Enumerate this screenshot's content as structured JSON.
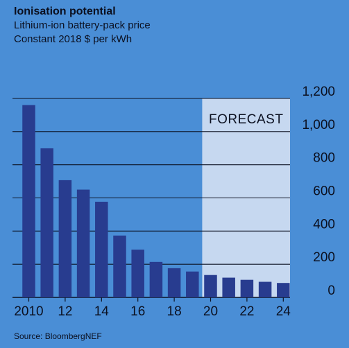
{
  "header": {
    "title": "Ionisation potential",
    "subtitle": "Lithium-ion battery-pack price",
    "unit": "Constant 2018 $ per kWh"
  },
  "source": "Source: BloombergNEF",
  "colors": {
    "background": "#4a8ed6",
    "bar": "#283c8f",
    "forecast_band": "#c6d8f0",
    "gridline": "#0b1020"
  },
  "chart_data": {
    "type": "bar",
    "title": "Ionisation potential",
    "subtitle": "Lithium-ion battery-pack price",
    "ylabel": "Constant 2018 $ per kWh",
    "categories": [
      "2010",
      "2011",
      "2012",
      "2013",
      "2014",
      "2015",
      "2016",
      "2017",
      "2018",
      "2019",
      "2020",
      "2021",
      "2022",
      "2023",
      "2024"
    ],
    "values": [
      1160,
      899,
      707,
      650,
      577,
      373,
      288,
      214,
      176,
      156,
      135,
      119,
      106,
      94,
      87
    ],
    "x_tick_labels": [
      "2010",
      "12",
      "14",
      "16",
      "18",
      "20",
      "22",
      "24"
    ],
    "y_ticks": [
      0,
      200,
      400,
      600,
      800,
      1000,
      1200
    ],
    "y_tick_labels": [
      "0",
      "200",
      "400",
      "600",
      "800",
      "1,000",
      "1,200"
    ],
    "ylim": [
      0,
      1200
    ],
    "grid": true,
    "y_axis_position": "right",
    "forecast": {
      "start_category": "2020",
      "end_category": "2024",
      "label": "FORECAST"
    }
  }
}
